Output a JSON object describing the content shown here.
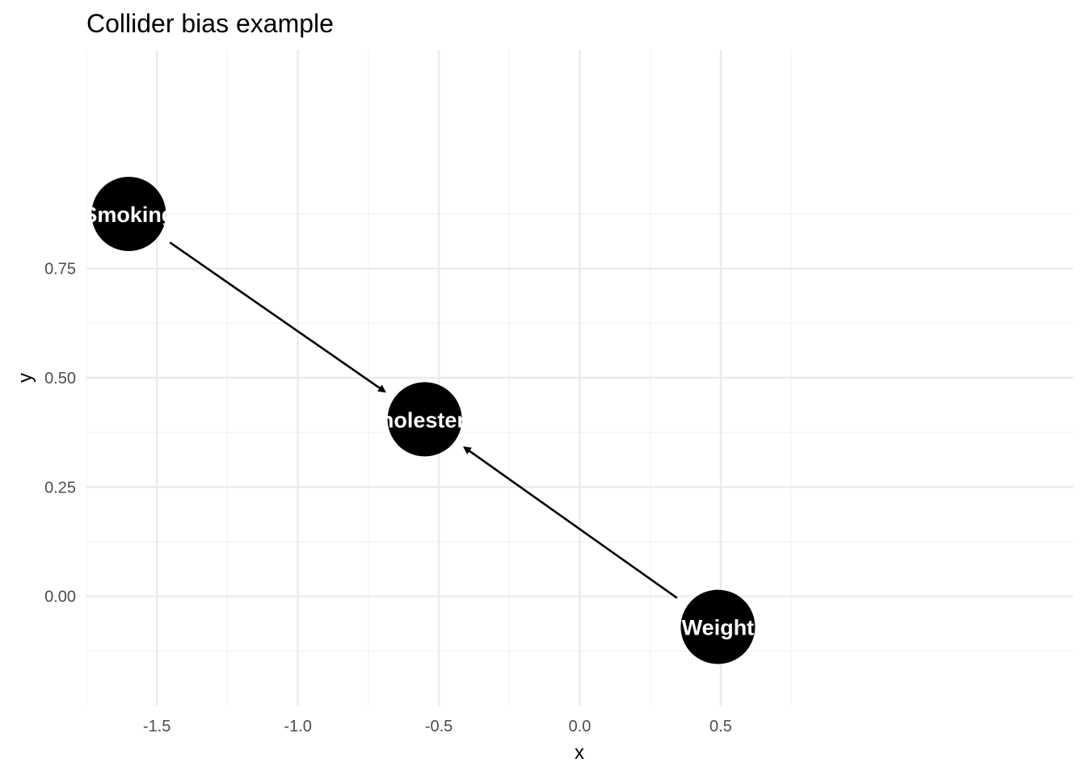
{
  "chart_data": {
    "type": "scatter",
    "title": "Collider bias example",
    "xlabel": "x",
    "ylabel": "y",
    "xlim": [
      -1.75,
      1.75
    ],
    "ylim": [
      -0.25,
      1.25
    ],
    "x_ticks": [
      -1.5,
      -1.0,
      -0.5,
      0.0,
      0.5
    ],
    "x_tick_labels": [
      "-1.5",
      "-1.0",
      "-0.5",
      "0.0",
      "0.5"
    ],
    "y_ticks": [
      0.0,
      0.25,
      0.5,
      0.75
    ],
    "y_tick_labels": [
      "0.00",
      "0.25",
      "0.50",
      "0.75"
    ],
    "grid": true,
    "nodes": [
      {
        "name": "Smoking",
        "x": -1.6,
        "y": 0.875
      },
      {
        "name": "Cholesterol",
        "x": -0.55,
        "y": 0.405
      },
      {
        "name": "Weight",
        "x": 0.49,
        "y": -0.07
      }
    ],
    "edges": [
      {
        "from": "Smoking",
        "to": "Cholesterol"
      },
      {
        "from": "Weight",
        "to": "Cholesterol"
      }
    ],
    "colors": {
      "node_fill": "#000000",
      "node_label": "#ffffff",
      "edge": "#000000",
      "grid_major": "#ebebeb",
      "grid_minor": "#f2f2f2"
    }
  }
}
